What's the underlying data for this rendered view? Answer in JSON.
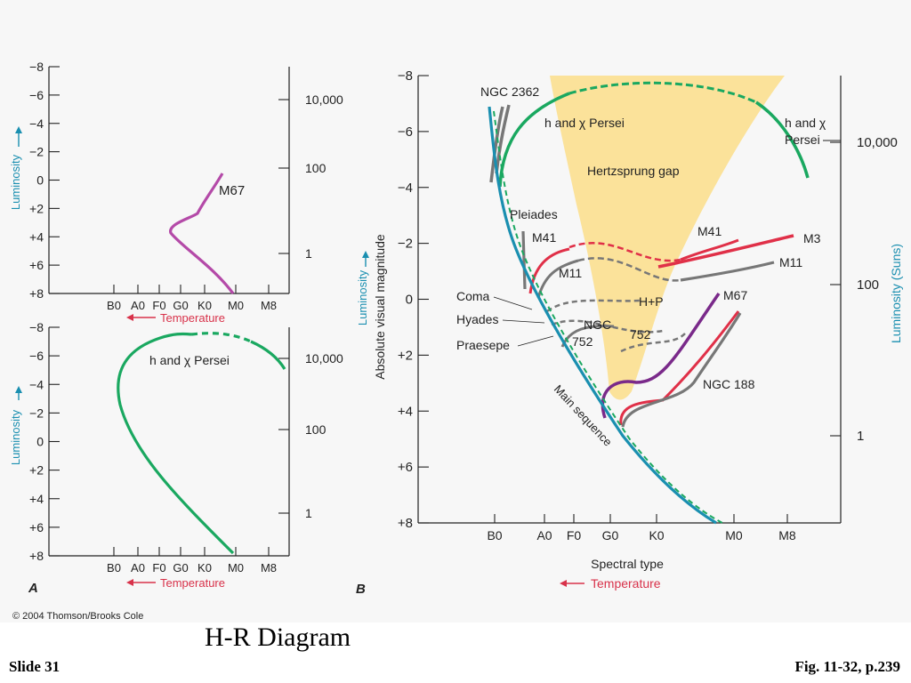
{
  "slide": {
    "title": "H-R Diagram",
    "number_label": "Slide 31",
    "figure_ref": "Fig. 11-32, p.239",
    "copyright": "© 2004 Thomson/Brooks Cole"
  },
  "colors": {
    "panel_bg": "#f7f7f7",
    "axis": "#222222",
    "main_sequence": "#1a8fb0",
    "green_cluster": "#1aa860",
    "magenta_cluster": "#b44aa8",
    "red_cluster": "#e03048",
    "purple_cluster": "#7a2a8a",
    "gray_cluster": "#777777",
    "gap_fill": "#fbe29a",
    "temperature_arrow": "#d8324a",
    "luminosity_label": "#1a8fb0"
  },
  "chart_data": [
    {
      "type": "line",
      "panel_label": "",
      "xlabel": "Temperature",
      "ylabel": "Luminosity",
      "x_tick_labels": [
        "B0",
        "A0",
        "F0",
        "G0",
        "K0",
        "M0",
        "M8"
      ],
      "y_tick_labels": [
        "−8",
        "−6",
        "−4",
        "−2",
        "0",
        "+2",
        "+4",
        "+6",
        "+8"
      ],
      "ylim": [
        -8,
        8
      ],
      "y2_tick_labels": [
        "10,000",
        "100",
        "1"
      ],
      "series": [
        {
          "name": "M67",
          "color": "magenta_cluster",
          "points": [
            [
              1.0,
              8.0
            ],
            [
              0.92,
              7.0
            ],
            [
              0.82,
              6.0
            ],
            [
              0.7,
              5.0
            ],
            [
              0.55,
              4.0
            ],
            [
              0.48,
              3.3
            ],
            [
              0.52,
              2.9
            ],
            [
              0.72,
              2.5
            ],
            [
              0.78,
              2.2
            ],
            [
              0.8,
              1.7
            ],
            [
              0.88,
              1.0
            ],
            [
              0.97,
              0.2
            ],
            [
              1.02,
              -0.3
            ]
          ]
        }
      ]
    },
    {
      "type": "line",
      "panel_label": "A",
      "xlabel": "Temperature",
      "ylabel": "Luminosity",
      "x_tick_labels": [
        "B0",
        "A0",
        "F0",
        "G0",
        "K0",
        "M0",
        "M8"
      ],
      "y_tick_labels": [
        "−8",
        "−6",
        "−4",
        "−2",
        "0",
        "+2",
        "+4",
        "+6",
        "+8"
      ],
      "ylim": [
        -8,
        8
      ],
      "y2_tick_labels": [
        "10,000",
        "100",
        "1"
      ],
      "series": [
        {
          "name": "h and χ Persei",
          "color": "green_cluster",
          "points": [
            [
              1.0,
              8.0
            ],
            [
              0.6,
              5.0
            ],
            [
              0.3,
              2.0
            ],
            [
              0.05,
              -0.5
            ],
            [
              -0.2,
              -3.0
            ],
            [
              -0.2,
              -4.5
            ],
            [
              -0.05,
              -6.0
            ],
            [
              0.3,
              -7.2
            ],
            [
              0.75,
              -7.8
            ]
          ],
          "dashed_points": [
            [
              0.75,
              -7.8
            ],
            [
              1.3,
              -7.8
            ],
            [
              1.7,
              -7.5
            ]
          ],
          "tail_points": [
            [
              1.7,
              -7.5
            ],
            [
              2.3,
              -6.8
            ],
            [
              2.65,
              -5.6
            ]
          ]
        }
      ]
    },
    {
      "type": "line",
      "panel_label": "B",
      "xlabel": "Spectral type",
      "ylabel": "Absolute visual magnitude",
      "y2label": "Luminosity (Suns)",
      "arrow_label": "Temperature",
      "luminosity_label": "Luminosity",
      "x_tick_labels": [
        "B0",
        "A0",
        "F0",
        "G0",
        "K0",
        "M0",
        "M8"
      ],
      "y_tick_labels": [
        "−8",
        "−6",
        "−4",
        "−2",
        "0",
        "+2",
        "+4",
        "+6",
        "+8"
      ],
      "ylim": [
        -8,
        8
      ],
      "y2_tick_labels": [
        "10,000",
        "100",
        "1"
      ],
      "region_labels": [
        "Hertzsprung gap",
        "Main sequence"
      ],
      "series": [
        {
          "name": "NGC 2362",
          "label": "NGC 2362",
          "color": "gray_cluster"
        },
        {
          "name": "h and χ Persei",
          "label": "h and χ Persei",
          "label_outer": [
            "h and χ",
            "Persei"
          ],
          "color": "green_cluster"
        },
        {
          "name": "Pleiades",
          "label": "Pleiades",
          "color": "gray_cluster"
        },
        {
          "name": "M41",
          "label": "M41",
          "color": "red_cluster"
        },
        {
          "name": "M3",
          "label": "M3",
          "color": "red_cluster"
        },
        {
          "name": "M11",
          "label": "M11",
          "color": "gray_cluster"
        },
        {
          "name": "Coma",
          "label": "Coma",
          "color": "gray_cluster"
        },
        {
          "name": "Hyades",
          "label": "Hyades",
          "color": "gray_cluster"
        },
        {
          "name": "Praesepe",
          "label": "Praesepe",
          "color": "gray_cluster"
        },
        {
          "name": "NGC 752",
          "label": [
            "NGC",
            "752"
          ],
          "color": "gray_cluster"
        },
        {
          "name": "H+P",
          "label": "H+P",
          "color": "gray_cluster"
        },
        {
          "name": "M67",
          "label": "M67",
          "color": "purple_cluster"
        },
        {
          "name": "NGC 188",
          "label": "NGC 188",
          "color": "gray_cluster"
        }
      ]
    }
  ]
}
